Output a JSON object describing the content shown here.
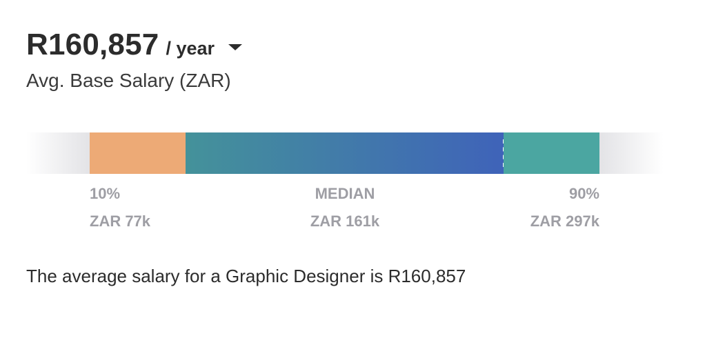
{
  "header": {
    "amount": "R160,857",
    "period": "/ year",
    "subtitle": "Avg. Base Salary (ZAR)"
  },
  "range": {
    "colors": {
      "low": "#EDAA76",
      "mid_start": "#44929A",
      "mid_end": "#3F63B9",
      "high": "#4BA6A1"
    },
    "low": {
      "percentile": "10%",
      "value": "ZAR 77k"
    },
    "median": {
      "label": "MEDIAN",
      "value": "ZAR 161k"
    },
    "high": {
      "percentile": "90%",
      "value": "ZAR 297k"
    }
  },
  "description": "The average salary for a Graphic Designer is R160,857"
}
